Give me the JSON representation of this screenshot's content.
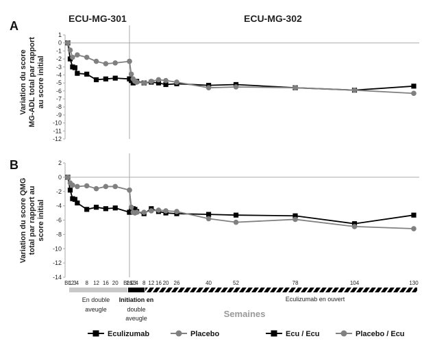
{
  "figure": {
    "study_labels": [
      "ECU-MG-301",
      "ECU-MG-302"
    ],
    "x_axis_title": "Semaines",
    "x_tick_labels": [
      {
        "label": "BL",
        "week": 0
      },
      {
        "label": "1",
        "week": 1
      },
      {
        "label": "2",
        "week": 2
      },
      {
        "label": "3",
        "week": 3
      },
      {
        "label": "4",
        "week": 4
      },
      {
        "label": "8",
        "week": 8
      },
      {
        "label": "12",
        "week": 12
      },
      {
        "label": "16",
        "week": 16
      },
      {
        "label": "20",
        "week": 20
      },
      {
        "label": "26",
        "week": 26
      },
      {
        "label": "BL",
        "week": 26.0
      },
      {
        "label": "1",
        "week": 27
      },
      {
        "label": "2",
        "week": 28
      },
      {
        "label": "3",
        "week": 29
      },
      {
        "label": "4",
        "week": 30
      },
      {
        "label": "8",
        "week": 34
      },
      {
        "label": "12",
        "week": 38
      },
      {
        "label": "16",
        "week": 42
      },
      {
        "label": "20",
        "week": 46
      },
      {
        "label": "26",
        "week": 52
      },
      {
        "label": "40",
        "week": 66
      },
      {
        "label": "52",
        "week": 78
      },
      {
        "label": "78",
        "week": 104
      },
      {
        "label": "104",
        "week": 130
      },
      {
        "label": "130",
        "week": 156
      }
    ],
    "phase_labels": {
      "double_blind": [
        "En double",
        "aveugle"
      ],
      "initiation": [
        "Initiation en",
        "double",
        "aveugle"
      ],
      "open_label": "Eculizumab en ouvert"
    },
    "legend": [
      {
        "label": "Eculizumab",
        "color": "#000000",
        "marker": "square"
      },
      {
        "label": "Placebo",
        "color": "#808080",
        "marker": "circle"
      },
      {
        "label": "Ecu / Ecu",
        "color": "#000000",
        "marker": "square"
      },
      {
        "label": "Placebo / Ecu",
        "color": "#808080",
        "marker": "circle"
      }
    ],
    "colors": {
      "eculizumab": "#000000",
      "placebo": "#808080",
      "axis": "#aaaaaa",
      "bar_light": "#c8c8c8"
    }
  },
  "chart_data": [
    {
      "type": "line",
      "panel": "A",
      "ylabel": "Variation du score MG-ADL total par rapport au score initial",
      "ylim": [
        -12,
        1
      ],
      "yticks": [
        1,
        0,
        -1,
        -2,
        -3,
        -4,
        -5,
        -6,
        -7,
        -8,
        -9,
        -10,
        -11,
        -12
      ],
      "series": [
        {
          "name": "Eculizumab",
          "x": [
            0,
            1,
            2,
            3,
            4,
            8,
            12,
            16,
            20,
            26
          ],
          "y": [
            0,
            -2.0,
            -3.0,
            -3.1,
            -3.8,
            -3.9,
            -4.6,
            -4.5,
            -4.4,
            -4.5
          ]
        },
        {
          "name": "Placebo",
          "x": [
            0,
            1,
            2,
            4,
            8,
            12,
            16,
            20,
            26
          ],
          "y": [
            0,
            -0.9,
            -1.8,
            -1.5,
            -1.8,
            -2.3,
            -2.6,
            -2.5,
            -2.3
          ]
        },
        {
          "name": "Ecu / Ecu",
          "x": [
            26,
            27,
            28,
            29,
            30,
            34,
            38,
            42,
            46,
            52,
            66,
            78,
            104,
            130,
            156
          ],
          "y": [
            -4.5,
            -4.7,
            -5.0,
            -4.9,
            -4.8,
            -5.0,
            -4.9,
            -5.0,
            -5.2,
            -5.1,
            -5.3,
            -5.2,
            -5.6,
            -5.9,
            -5.4
          ]
        },
        {
          "name": "Placebo / Ecu",
          "x": [
            26,
            27,
            28,
            29,
            30,
            34,
            38,
            42,
            46,
            52,
            66,
            78,
            104,
            130,
            156
          ],
          "y": [
            -2.3,
            -3.9,
            -4.5,
            -4.8,
            -4.9,
            -5.0,
            -4.8,
            -4.6,
            -4.7,
            -4.9,
            -5.6,
            -5.5,
            -5.6,
            -5.9,
            -6.3
          ]
        }
      ]
    },
    {
      "type": "line",
      "panel": "B",
      "ylabel": "Variation du score QMG total par rapport au score initial",
      "ylim": [
        -14,
        2
      ],
      "yticks": [
        2,
        0,
        -2,
        -4,
        -6,
        -8,
        -10,
        -12,
        -14
      ],
      "series": [
        {
          "name": "Eculizumab",
          "x": [
            0,
            1,
            2,
            3,
            4,
            8,
            12,
            16,
            20,
            26
          ],
          "y": [
            0,
            -1.8,
            -3.0,
            -3.1,
            -3.6,
            -4.5,
            -4.2,
            -4.4,
            -4.3,
            -4.9
          ]
        },
        {
          "name": "Placebo",
          "x": [
            0,
            1,
            2,
            4,
            8,
            12,
            16,
            20,
            26
          ],
          "y": [
            0,
            -0.8,
            -1.1,
            -1.3,
            -1.2,
            -1.6,
            -1.3,
            -1.3,
            -1.8
          ]
        },
        {
          "name": "Ecu / Ecu",
          "x": [
            26,
            27,
            28,
            29,
            30,
            34,
            38,
            42,
            46,
            52,
            66,
            78,
            104,
            130,
            156
          ],
          "y": [
            -4.9,
            -4.7,
            -4.4,
            -4.5,
            -4.8,
            -5.1,
            -4.4,
            -4.8,
            -5.0,
            -5.1,
            -5.2,
            -5.3,
            -5.4,
            -6.5,
            -5.3
          ]
        },
        {
          "name": "Placebo / Ecu",
          "x": [
            26,
            27,
            28,
            29,
            30,
            34,
            38,
            42,
            46,
            52,
            66,
            78,
            104,
            130,
            156
          ],
          "y": [
            -1.8,
            -4.2,
            -4.9,
            -5.0,
            -4.9,
            -4.9,
            -4.7,
            -4.6,
            -4.7,
            -4.8,
            -5.8,
            -6.3,
            -5.9,
            -6.9,
            -7.2
          ]
        }
      ]
    }
  ]
}
